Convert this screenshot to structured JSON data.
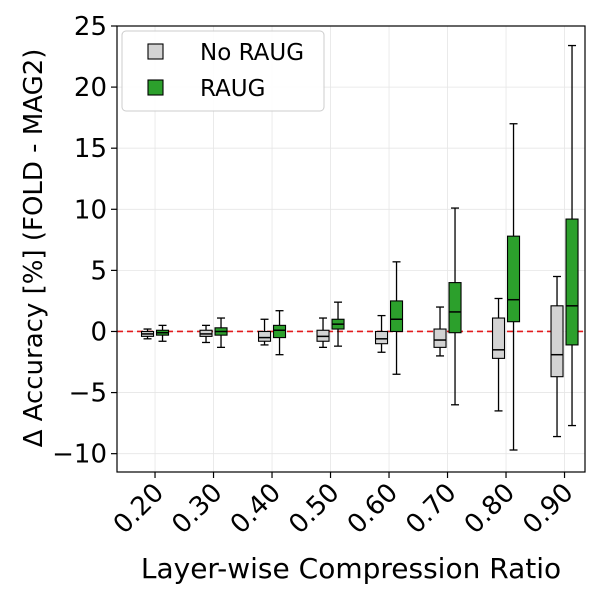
{
  "chart_data": {
    "type": "box",
    "title": "",
    "xlabel": "Layer-wise Compression Ratio",
    "ylabel": "Δ Accuracy [%] (FOLD - MAG2)",
    "categories": [
      "0.20",
      "0.30",
      "0.40",
      "0.50",
      "0.60",
      "0.70",
      "0.80",
      "0.90"
    ],
    "ylim": [
      -11.5,
      25
    ],
    "yticks": [
      25,
      20,
      15,
      10,
      5,
      0,
      -5,
      -10
    ],
    "ytick_labels": [
      "25",
      "20",
      "15",
      "10",
      "5",
      "0",
      "−5",
      "−10"
    ],
    "grid": true,
    "legend_position": "top-left",
    "reference_line": {
      "y": 0,
      "color": "#e31a1c",
      "style": "dashed"
    },
    "series": [
      {
        "name": "No RAUG",
        "color": "#d3d3d3",
        "boxes": [
          {
            "whisker_low": -0.6,
            "q1": -0.4,
            "median": -0.2,
            "q3": 0.0,
            "whisker_high": 0.2
          },
          {
            "whisker_low": -0.9,
            "q1": -0.4,
            "median": -0.2,
            "q3": 0.1,
            "whisker_high": 0.5
          },
          {
            "whisker_low": -1.1,
            "q1": -0.8,
            "median": -0.5,
            "q3": 0.0,
            "whisker_high": 1.0
          },
          {
            "whisker_low": -1.3,
            "q1": -0.8,
            "median": -0.4,
            "q3": 0.1,
            "whisker_high": 1.1
          },
          {
            "whisker_low": -1.7,
            "q1": -1.0,
            "median": -0.6,
            "q3": 0.0,
            "whisker_high": 1.3
          },
          {
            "whisker_low": -2.0,
            "q1": -1.3,
            "median": -0.7,
            "q3": 0.2,
            "whisker_high": 2.0
          },
          {
            "whisker_low": -6.5,
            "q1": -2.2,
            "median": -1.5,
            "q3": 1.1,
            "whisker_high": 2.7
          },
          {
            "whisker_low": -8.6,
            "q1": -3.7,
            "median": -1.9,
            "q3": 2.1,
            "whisker_high": 4.5
          }
        ]
      },
      {
        "name": "RAUG",
        "color": "#2ca02c",
        "boxes": [
          {
            "whisker_low": -0.8,
            "q1": -0.3,
            "median": -0.1,
            "q3": 0.1,
            "whisker_high": 0.5
          },
          {
            "whisker_low": -1.3,
            "q1": -0.3,
            "median": 0.0,
            "q3": 0.3,
            "whisker_high": 1.1
          },
          {
            "whisker_low": -1.9,
            "q1": -0.5,
            "median": 0.1,
            "q3": 0.5,
            "whisker_high": 1.7
          },
          {
            "whisker_low": -1.2,
            "q1": 0.2,
            "median": 0.6,
            "q3": 1.0,
            "whisker_high": 2.4
          },
          {
            "whisker_low": -3.5,
            "q1": 0.0,
            "median": 1.0,
            "q3": 2.5,
            "whisker_high": 5.7
          },
          {
            "whisker_low": -6.0,
            "q1": -0.1,
            "median": 1.6,
            "q3": 4.0,
            "whisker_high": 10.1
          },
          {
            "whisker_low": -9.7,
            "q1": 0.8,
            "median": 2.6,
            "q3": 7.8,
            "whisker_high": 17.0
          },
          {
            "whisker_low": -7.7,
            "q1": -1.1,
            "median": 2.1,
            "q3": 9.2,
            "whisker_high": 23.4
          }
        ]
      }
    ]
  }
}
